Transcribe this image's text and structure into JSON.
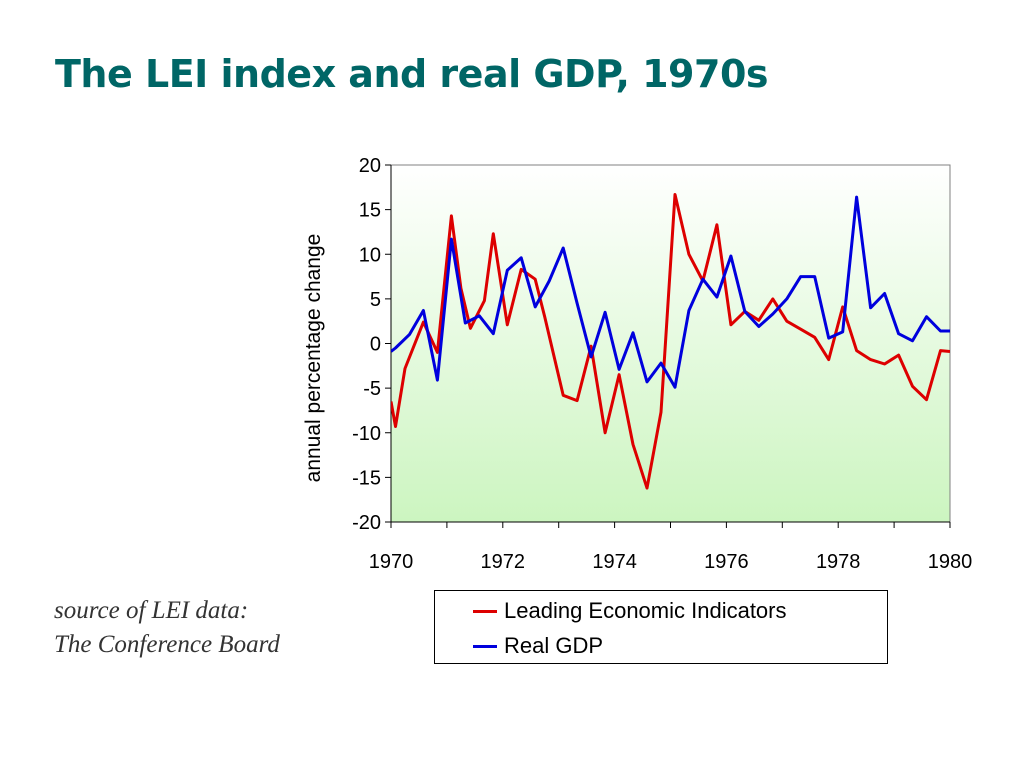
{
  "title": "The LEI index and real GDP, 1970s",
  "source_lines": [
    "source of LEI data:",
    "The Conference Board"
  ],
  "chart_data": {
    "type": "line",
    "title": "The LEI index and real GDP, 1970s",
    "ylabel": "annual percentage change",
    "xlabel": "",
    "xlim": [
      1970,
      1980
    ],
    "ylim": [
      -20,
      20
    ],
    "xticks": [
      1970,
      1972,
      1974,
      1976,
      1978,
      1980
    ],
    "yticks": [
      20,
      15,
      10,
      5,
      0,
      -5,
      -10,
      -15,
      -20
    ],
    "background_gradient": [
      "#ffffff",
      "#ccf5c0"
    ],
    "legend_position": "bottom",
    "series": [
      {
        "name": "Leading Economic Indicators",
        "color": "#dd0000",
        "x": [
          1970.0,
          1970.08,
          1970.25,
          1970.58,
          1970.83,
          1971.08,
          1971.25,
          1971.42,
          1971.67,
          1971.83,
          1972.08,
          1972.33,
          1972.58,
          1972.75,
          1973.08,
          1973.33,
          1973.58,
          1973.83,
          1974.08,
          1974.33,
          1974.58,
          1974.83,
          1975.08,
          1975.33,
          1975.58,
          1975.83,
          1976.08,
          1976.33,
          1976.58,
          1976.83,
          1977.08,
          1977.33,
          1977.58,
          1977.83,
          1978.08,
          1978.33,
          1978.58,
          1978.83,
          1979.08,
          1979.33,
          1979.58,
          1979.83,
          1980.0
        ],
        "y": [
          -6.5,
          -9.3,
          -2.8,
          2.4,
          -1.0,
          14.3,
          6.2,
          1.7,
          4.8,
          12.3,
          2.1,
          8.3,
          7.2,
          3.0,
          -5.8,
          -6.4,
          -0.3,
          -10.0,
          -3.5,
          -11.3,
          -16.2,
          -7.7,
          16.7,
          10.0,
          7.0,
          13.3,
          2.1,
          3.6,
          2.6,
          5.0,
          2.5,
          1.6,
          0.7,
          -1.8,
          4.1,
          -0.8,
          -1.8,
          -2.3,
          -1.3,
          -4.8,
          -6.3,
          -0.8,
          -0.9
        ]
      },
      {
        "name": "Real GDP",
        "color": "#0000dd",
        "x": [
          1970.0,
          1970.08,
          1970.33,
          1970.58,
          1970.83,
          1971.08,
          1971.33,
          1971.58,
          1971.83,
          1972.08,
          1972.33,
          1972.58,
          1972.83,
          1973.08,
          1973.33,
          1973.58,
          1973.83,
          1974.08,
          1974.33,
          1974.58,
          1974.83,
          1975.08,
          1975.33,
          1975.58,
          1975.83,
          1976.08,
          1976.33,
          1976.58,
          1976.83,
          1977.08,
          1977.33,
          1977.58,
          1977.83,
          1978.08,
          1978.33,
          1978.58,
          1978.83,
          1979.08,
          1979.33,
          1979.58,
          1979.83,
          1980.0
        ],
        "y": [
          -0.9,
          -0.5,
          1.0,
          3.7,
          -4.1,
          11.7,
          2.3,
          3.1,
          1.1,
          8.2,
          9.6,
          4.1,
          7.0,
          10.7,
          4.5,
          -1.5,
          3.5,
          -2.9,
          1.2,
          -4.3,
          -2.2,
          -4.9,
          3.7,
          7.2,
          5.2,
          9.8,
          3.6,
          1.9,
          3.3,
          5.0,
          7.5,
          7.5,
          0.6,
          1.3,
          16.4,
          4.0,
          5.6,
          1.1,
          0.3,
          3.0,
          1.4,
          1.4
        ]
      }
    ]
  }
}
